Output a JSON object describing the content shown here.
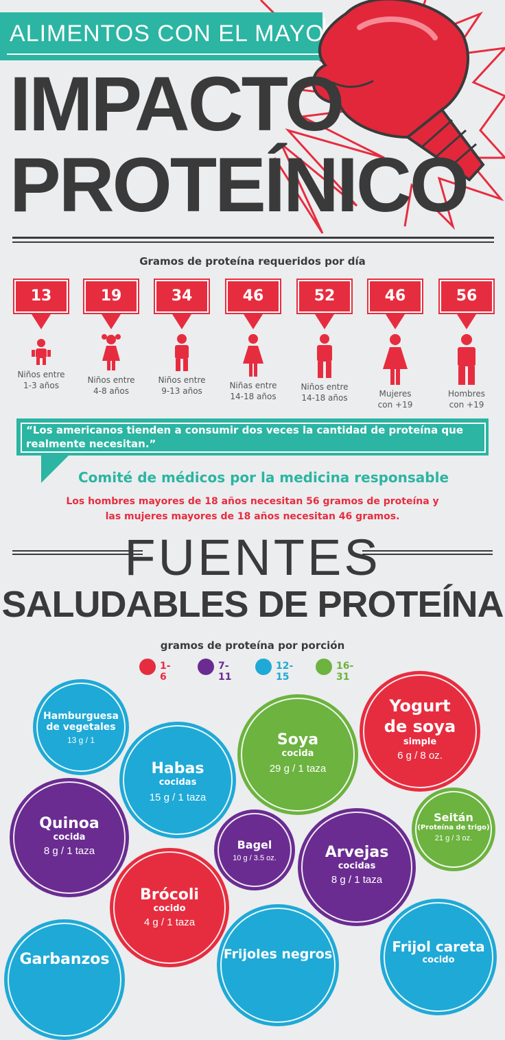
{
  "header": {
    "banner": "ALIMENTOS CON EL MAYOR",
    "title_line1": "IMPACTO",
    "title_line2": "PROTEÍNICO",
    "subtitle": "Gramos de proteína requeridos por día"
  },
  "requirements": [
    {
      "value": "13",
      "label1": "Niños entre",
      "label2": "1-3 años"
    },
    {
      "value": "19",
      "label1": "Niños entre",
      "label2": "4-8 años"
    },
    {
      "value": "34",
      "label1": "Niños entre",
      "label2": "9-13 años"
    },
    {
      "value": "46",
      "label1": "Niñas entre",
      "label2": "14-18 años"
    },
    {
      "value": "52",
      "label1": "Niños entre",
      "label2": "14-18 años"
    },
    {
      "value": "46",
      "label1": "Mujeres",
      "label2": "con +19"
    },
    {
      "value": "56",
      "label1": "Hombres",
      "label2": "con +19"
    }
  ],
  "quote": {
    "text": "“Los americanos tienden a consumir dos veces la cantidad de proteína que realmente necesitan.”",
    "source": "Comité de médicos por la medicina responsable",
    "note_line1": "Los hombres mayores de 18 años necesitan 56 gramos de proteína y",
    "note_line2": "las mujeres mayores de 18 años necesitan 46 gramos."
  },
  "sources": {
    "title_line1": "FUENTES",
    "title_line2": "SALUDABLES DE PROTEÍNA",
    "legend_title": "gramos de proteína por porción",
    "legend": [
      {
        "label": "1-6",
        "color": "#e62d3f"
      },
      {
        "label": "7-11",
        "color": "#6a2c91"
      },
      {
        "label": "12-15",
        "color": "#1fa9d6"
      },
      {
        "label": "16-31",
        "color": "#6cb33f"
      }
    ]
  },
  "foods": [
    {
      "name": "Hamburguesa",
      "name2": "de vegetales",
      "sub": "",
      "value": "13 g / 1",
      "color": "#1fa9d6"
    },
    {
      "name": "Habas",
      "name2": "",
      "sub": "cocidas",
      "value": "15 g / 1 taza",
      "color": "#1fa9d6"
    },
    {
      "name": "Soya",
      "name2": "",
      "sub": "cocida",
      "value": "29 g / 1 taza",
      "color": "#6cb33f"
    },
    {
      "name": "Yogurt",
      "name2": "de soya",
      "sub": "simple",
      "value": "6 g / 8 oz.",
      "color": "#e62d3f"
    },
    {
      "name": "Quinoa",
      "name2": "",
      "sub": "cocida",
      "value": "8 g / 1 taza",
      "color": "#6a2c91"
    },
    {
      "name": "Bagel",
      "name2": "",
      "sub": "",
      "value": "10 g / 3.5 oz.",
      "color": "#6a2c91"
    },
    {
      "name": "Seitán",
      "name2": "",
      "sub": "(Proteína de trigo)",
      "value": "21 g / 3 oz.",
      "color": "#6cb33f"
    },
    {
      "name": "Arvejas",
      "name2": "",
      "sub": "cocidas",
      "value": "8 g / 1 taza",
      "color": "#6a2c91"
    },
    {
      "name": "Brócoli",
      "name2": "",
      "sub": "cocido",
      "value": "4 g / 1 taza",
      "color": "#e62d3f"
    },
    {
      "name": "Garbanzos",
      "name2": "",
      "sub": "",
      "value": "",
      "color": "#1fa9d6"
    },
    {
      "name": "Frijoles negros",
      "name2": "",
      "sub": "",
      "value": "",
      "color": "#1fa9d6"
    },
    {
      "name": "Frijol careta",
      "name2": "",
      "sub": "cocido",
      "value": "",
      "color": "#1fa9d6"
    }
  ]
}
